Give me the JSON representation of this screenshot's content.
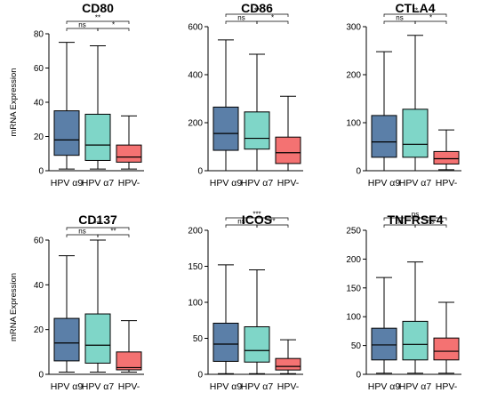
{
  "chart_data": [
    {
      "type": "box",
      "title": "CD80",
      "ylabel": "mRNA Expression",
      "ylim": [
        0,
        80
      ],
      "yticks": [
        0,
        20,
        40,
        60,
        80
      ],
      "categories": [
        "HPV α9",
        "HPV α7",
        "HPV-"
      ],
      "colors": [
        "#5b7fa8",
        "#7fd6c8",
        "#f47272"
      ],
      "boxes": [
        {
          "min": 1,
          "q1": 9,
          "median": 18,
          "q3": 35,
          "max": 75
        },
        {
          "min": 1,
          "q1": 6,
          "median": 15,
          "q3": 33,
          "max": 73
        },
        {
          "min": 1,
          "q1": 5,
          "median": 8,
          "q3": 15,
          "max": 32
        }
      ],
      "comparisons": [
        {
          "from": 0,
          "to": 2,
          "label": "**"
        },
        {
          "from": 0,
          "to": 1,
          "label": "ns"
        },
        {
          "from": 1,
          "to": 2,
          "label": "*"
        }
      ]
    },
    {
      "type": "box",
      "title": "CD86",
      "ylabel": "",
      "ylim": [
        0,
        600
      ],
      "yticks": [
        0,
        200,
        400,
        600
      ],
      "categories": [
        "HPV α9",
        "HPV α7",
        "HPV-"
      ],
      "colors": [
        "#5b7fa8",
        "#7fd6c8",
        "#f47272"
      ],
      "boxes": [
        {
          "min": 0,
          "q1": 85,
          "median": 155,
          "q3": 265,
          "max": 545
        },
        {
          "min": 0,
          "q1": 90,
          "median": 135,
          "q3": 245,
          "max": 485
        },
        {
          "min": 0,
          "q1": 30,
          "median": 75,
          "q3": 140,
          "max": 310
        }
      ],
      "comparisons": [
        {
          "from": 0,
          "to": 2,
          "label": "**"
        },
        {
          "from": 0,
          "to": 1,
          "label": "ns"
        },
        {
          "from": 1,
          "to": 2,
          "label": "*"
        }
      ]
    },
    {
      "type": "box",
      "title": "CTLA4",
      "ylabel": "",
      "ylim": [
        0,
        300
      ],
      "yticks": [
        0,
        100,
        200,
        300
      ],
      "categories": [
        "HPV α9",
        "HPV α7",
        "HPV-"
      ],
      "colors": [
        "#5b7fa8",
        "#7fd6c8",
        "#f47272"
      ],
      "boxes": [
        {
          "min": 0,
          "q1": 28,
          "median": 60,
          "q3": 115,
          "max": 248
        },
        {
          "min": 0,
          "q1": 28,
          "median": 55,
          "q3": 128,
          "max": 282
        },
        {
          "min": 2,
          "q1": 14,
          "median": 25,
          "q3": 40,
          "max": 85
        }
      ],
      "comparisons": [
        {
          "from": 0,
          "to": 2,
          "label": "**"
        },
        {
          "from": 0,
          "to": 1,
          "label": "ns"
        },
        {
          "from": 1,
          "to": 2,
          "label": "*"
        }
      ]
    },
    {
      "type": "box",
      "title": "CD137",
      "ylabel": "mRNA Expression",
      "ylim": [
        0,
        60
      ],
      "yticks": [
        0,
        20,
        40,
        60
      ],
      "categories": [
        "HPV α9",
        "HPV α7",
        "HPV-"
      ],
      "colors": [
        "#5b7fa8",
        "#7fd6c8",
        "#f47272"
      ],
      "boxes": [
        {
          "min": 1,
          "q1": 6,
          "median": 14,
          "q3": 25,
          "max": 53
        },
        {
          "min": 1,
          "q1": 5,
          "median": 13,
          "q3": 27,
          "max": 60
        },
        {
          "min": 1,
          "q1": 2,
          "median": 3,
          "q3": 10,
          "max": 24
        }
      ],
      "comparisons": [
        {
          "from": 0,
          "to": 2,
          "label": "***"
        },
        {
          "from": 0,
          "to": 1,
          "label": "ns"
        },
        {
          "from": 1,
          "to": 2,
          "label": "**"
        }
      ]
    },
    {
      "type": "box",
      "title": "ICOS",
      "ylabel": "",
      "ylim": [
        0,
        200
      ],
      "yticks": [
        0,
        50,
        100,
        150,
        200
      ],
      "categories": [
        "HPV α9",
        "HPV α7",
        "HPV-"
      ],
      "colors": [
        "#5b7fa8",
        "#7fd6c8",
        "#f47272"
      ],
      "boxes": [
        {
          "min": 1,
          "q1": 18,
          "median": 42,
          "q3": 71,
          "max": 152
        },
        {
          "min": 1,
          "q1": 17,
          "median": 33,
          "q3": 66,
          "max": 145
        },
        {
          "min": 1,
          "q1": 6,
          "median": 11,
          "q3": 22,
          "max": 48
        }
      ],
      "comparisons": [
        {
          "from": 0,
          "to": 2,
          "label": "***"
        },
        {
          "from": 0,
          "to": 1,
          "label": "ns"
        },
        {
          "from": 1,
          "to": 2,
          "label": "**"
        }
      ]
    },
    {
      "type": "box",
      "title": "TNFRSF4",
      "ylabel": "",
      "ylim": [
        0,
        250
      ],
      "yticks": [
        0,
        50,
        100,
        150,
        200,
        250
      ],
      "categories": [
        "HPV α9",
        "HPV α7",
        "HPV-"
      ],
      "colors": [
        "#5b7fa8",
        "#7fd6c8",
        "#f47272"
      ],
      "boxes": [
        {
          "min": 2,
          "q1": 25,
          "median": 51,
          "q3": 80,
          "max": 168
        },
        {
          "min": 2,
          "q1": 25,
          "median": 52,
          "q3": 92,
          "max": 195
        },
        {
          "min": 2,
          "q1": 25,
          "median": 40,
          "q3": 63,
          "max": 125
        }
      ],
      "comparisons": [
        {
          "from": 0,
          "to": 2,
          "label": "ns"
        },
        {
          "from": 0,
          "to": 1,
          "label": "ns"
        },
        {
          "from": 1,
          "to": 2,
          "label": "ns"
        }
      ]
    }
  ]
}
